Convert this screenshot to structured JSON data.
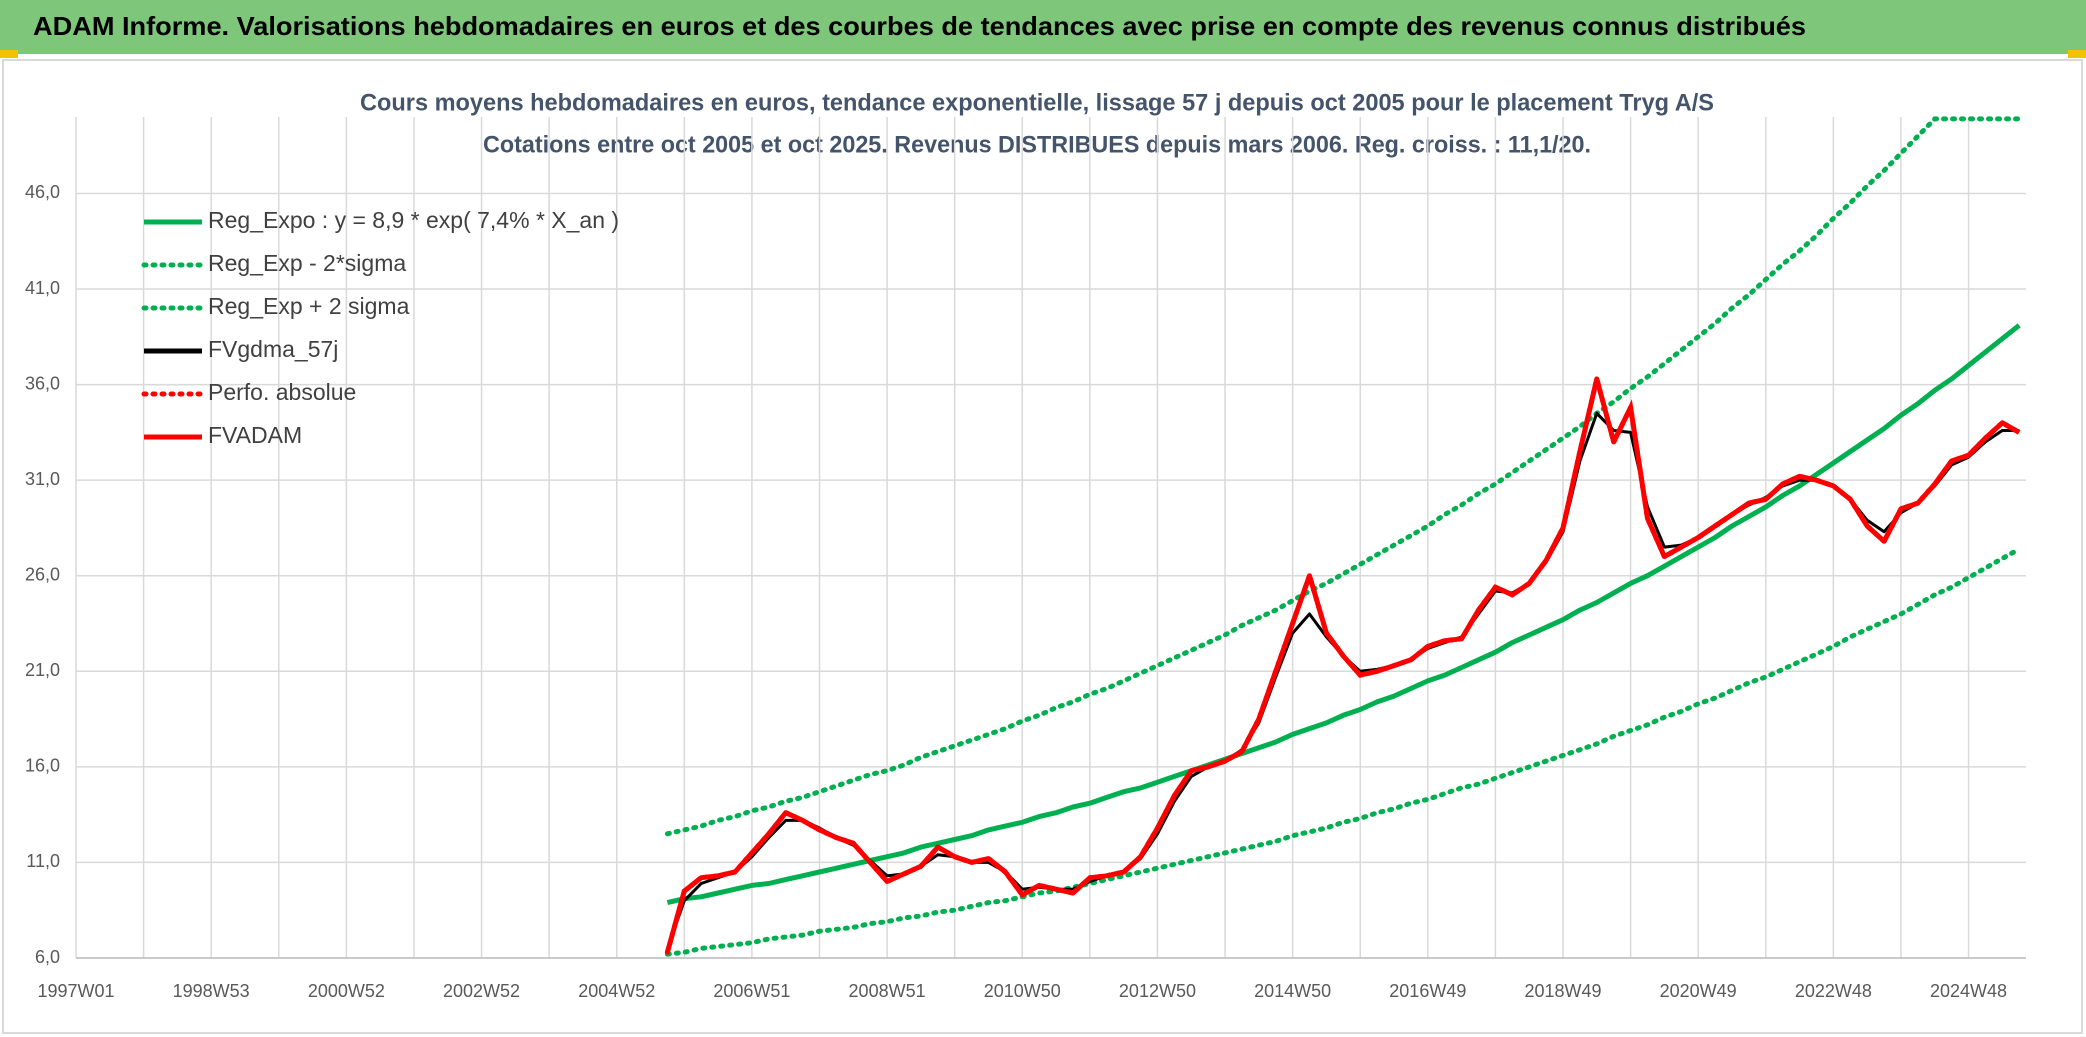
{
  "header": {
    "title": "ADAM Informe. Valorisations hebdomadaires en euros et des courbes de tendances avec prise en compte des revenus connus distribués"
  },
  "chart_data": {
    "type": "line",
    "title": "Cours moyens hebdomadaires en euros, tendance exponentielle, lissage 57 j depuis oct 2005 pour le placement Tryg A/S",
    "subtitle": "Cotations entre oct 2005 et oct 2025. Revenus DISTRIBUES depuis mars 2006. Reg. croiss. : 11,1/20.",
    "categories": [
      "1997W01",
      null,
      null,
      null,
      null,
      null,
      null,
      null,
      "1998W53",
      null,
      null,
      null,
      null,
      null,
      null,
      null,
      "2000W52",
      null,
      null,
      null,
      null,
      null,
      null,
      null,
      "2002W52",
      null,
      null,
      null,
      null,
      null,
      null,
      null,
      "2004W52",
      null,
      null,
      null,
      null,
      null,
      null,
      null,
      "2006W51",
      null,
      null,
      null,
      null,
      null,
      null,
      null,
      "2008W51",
      null,
      null,
      null,
      null,
      null,
      null,
      null,
      "2010W50",
      null,
      null,
      null,
      null,
      null,
      null,
      null,
      "2012W50",
      null,
      null,
      null,
      null,
      null,
      null,
      null,
      "2014W50",
      null,
      null,
      null,
      null,
      null,
      null,
      null,
      "2016W49",
      null,
      null,
      null,
      null,
      null,
      null,
      null,
      "2018W49",
      null,
      null,
      null,
      null,
      null,
      null,
      null,
      "2020W49",
      null,
      null,
      null,
      null,
      null,
      null,
      null,
      "2022W48",
      null,
      null,
      null,
      null,
      null,
      null,
      null,
      "2024W48",
      null,
      null,
      null
    ],
    "ylim": [
      6,
      50
    ],
    "yticks": [
      {
        "value": 6,
        "label": "6,0"
      },
      {
        "value": 11,
        "label": "11,0"
      },
      {
        "value": 16,
        "label": "16,0"
      },
      {
        "value": 21,
        "label": "21,0"
      },
      {
        "value": 26,
        "label": "26,0"
      },
      {
        "value": 31,
        "label": "31,0"
      },
      {
        "value": 36,
        "label": "36,0"
      },
      {
        "value": 41,
        "label": "41,0"
      },
      {
        "value": 46,
        "label": "46,0"
      }
    ],
    "grid": true,
    "legend": "upper left",
    "series": [
      {
        "name": "Reg_Expo : y = 8,9 * exp( 7,4% *  X_an )",
        "color": "#00b050",
        "style": "solid",
        "values": [
          null,
          null,
          null,
          null,
          null,
          null,
          null,
          null,
          null,
          null,
          null,
          null,
          null,
          null,
          null,
          null,
          null,
          null,
          null,
          null,
          null,
          null,
          null,
          null,
          null,
          null,
          null,
          null,
          null,
          null,
          null,
          null,
          null,
          null,
          null,
          8.9,
          9.1,
          9.2,
          9.4,
          9.6,
          9.8,
          9.9,
          10.1,
          10.3,
          10.5,
          10.7,
          10.9,
          11.1,
          11.3,
          11.5,
          11.8,
          12.0,
          12.2,
          12.4,
          12.7,
          12.9,
          13.1,
          13.4,
          13.6,
          13.9,
          14.1,
          14.4,
          14.7,
          14.9,
          15.2,
          15.5,
          15.8,
          16.1,
          16.4,
          16.7,
          17.0,
          17.3,
          17.7,
          18.0,
          18.3,
          18.7,
          19.0,
          19.4,
          19.7,
          20.1,
          20.5,
          20.8,
          21.2,
          21.6,
          22.0,
          22.5,
          22.9,
          23.3,
          23.7,
          24.2,
          24.6,
          25.1,
          25.6,
          26.0,
          26.5,
          27.0,
          27.5,
          28.0,
          28.6,
          29.1,
          29.6,
          30.2,
          30.7,
          31.3,
          31.9,
          32.5,
          33.1,
          33.7,
          34.4,
          35.0,
          35.7,
          36.3,
          37.0,
          37.7,
          38.4,
          39.1
        ]
      },
      {
        "name": "Reg_Exp - 2*sigma",
        "color": "#00b050",
        "style": "dotted",
        "values": [
          null,
          null,
          null,
          null,
          null,
          null,
          null,
          null,
          null,
          null,
          null,
          null,
          null,
          null,
          null,
          null,
          null,
          null,
          null,
          null,
          null,
          null,
          null,
          null,
          null,
          null,
          null,
          null,
          null,
          null,
          null,
          null,
          null,
          null,
          null,
          6.2,
          6.3,
          6.5,
          6.6,
          6.7,
          6.8,
          7.0,
          7.1,
          7.2,
          7.4,
          7.5,
          7.6,
          7.8,
          7.9,
          8.1,
          8.2,
          8.4,
          8.5,
          8.7,
          8.9,
          9.0,
          9.2,
          9.4,
          9.5,
          9.7,
          9.9,
          10.1,
          10.3,
          10.5,
          10.7,
          10.9,
          11.1,
          11.3,
          11.5,
          11.7,
          11.9,
          12.1,
          12.4,
          12.6,
          12.8,
          13.1,
          13.3,
          13.6,
          13.8,
          14.1,
          14.3,
          14.6,
          14.9,
          15.1,
          15.4,
          15.7,
          16.0,
          16.3,
          16.6,
          16.9,
          17.2,
          17.6,
          17.9,
          18.2,
          18.6,
          18.9,
          19.3,
          19.6,
          20.0,
          20.4,
          20.7,
          21.1,
          21.5,
          21.9,
          22.3,
          22.8,
          23.2,
          23.6,
          24.0,
          24.5,
          25.0,
          25.4,
          25.9,
          26.4,
          26.9,
          27.4
        ]
      },
      {
        "name": "Reg_Exp + 2 sigma",
        "color": "#00b050",
        "style": "dotted",
        "values": [
          null,
          null,
          null,
          null,
          null,
          null,
          null,
          null,
          null,
          null,
          null,
          null,
          null,
          null,
          null,
          null,
          null,
          null,
          null,
          null,
          null,
          null,
          null,
          null,
          null,
          null,
          null,
          null,
          null,
          null,
          null,
          null,
          null,
          null,
          null,
          12.5,
          12.7,
          12.9,
          13.2,
          13.4,
          13.7,
          13.9,
          14.2,
          14.4,
          14.7,
          15.0,
          15.3,
          15.6,
          15.8,
          16.1,
          16.5,
          16.8,
          17.1,
          17.4,
          17.7,
          18.0,
          18.4,
          18.7,
          19.1,
          19.4,
          19.8,
          20.1,
          20.5,
          20.9,
          21.3,
          21.7,
          22.1,
          22.5,
          22.9,
          23.4,
          23.8,
          24.2,
          24.7,
          25.2,
          25.6,
          26.1,
          26.6,
          27.1,
          27.6,
          28.1,
          28.6,
          29.2,
          29.7,
          30.3,
          30.8,
          31.4,
          32.0,
          32.6,
          33.2,
          33.8,
          34.5,
          35.1,
          35.8,
          36.4,
          37.1,
          37.8,
          38.5,
          39.2,
          40.0,
          40.7,
          41.5,
          42.3,
          43.0,
          43.8,
          44.7,
          45.5,
          46.4,
          47.2,
          48.1,
          49.0,
          49.9,
          49.9,
          49.9,
          49.9,
          49.9,
          49.9
        ]
      },
      {
        "name": "FVgdma_57j",
        "color": "#000000",
        "style": "solid",
        "values": [
          null,
          null,
          null,
          null,
          null,
          null,
          null,
          null,
          null,
          null,
          null,
          null,
          null,
          null,
          null,
          null,
          null,
          null,
          null,
          null,
          null,
          null,
          null,
          null,
          null,
          null,
          null,
          null,
          null,
          null,
          null,
          null,
          null,
          null,
          null,
          6.5,
          9.0,
          9.9,
          10.2,
          10.5,
          11.3,
          12.3,
          13.2,
          13.2,
          12.8,
          12.3,
          11.9,
          11.1,
          10.3,
          10.4,
          10.8,
          11.4,
          11.3,
          11.0,
          11.0,
          10.5,
          9.6,
          9.7,
          9.6,
          9.6,
          10.0,
          10.3,
          10.5,
          11.2,
          12.5,
          14.2,
          15.5,
          16.0,
          16.3,
          16.9,
          18.3,
          20.7,
          23.0,
          24.0,
          22.8,
          21.8,
          21.0,
          21.1,
          21.3,
          21.6,
          22.2,
          22.5,
          22.8,
          24.0,
          25.2,
          25.1,
          25.6,
          26.7,
          28.3,
          32.0,
          34.5,
          33.6,
          33.5,
          29.6,
          27.5,
          27.6,
          28.0,
          28.6,
          29.2,
          29.7,
          30.1,
          30.7,
          31.0,
          31.0,
          30.7,
          30.0,
          28.9,
          28.3,
          29.3,
          29.8,
          30.7,
          31.8,
          32.2,
          33.0,
          33.6,
          33.6
        ]
      },
      {
        "name": "Perfo. absolue",
        "color": "#ff0000",
        "style": "dotted",
        "values": [
          null,
          null,
          null,
          null,
          null,
          null,
          null,
          null,
          null,
          null,
          null,
          null,
          null,
          null,
          null,
          null,
          null,
          null,
          null,
          null,
          null,
          null,
          null,
          null,
          null,
          null,
          null,
          null,
          null,
          null,
          null,
          null,
          null,
          null,
          null,
          6.3,
          9.5,
          10.2,
          10.3,
          10.5,
          11.5,
          12.5,
          13.6,
          13.2,
          12.7,
          12.3,
          12.0,
          11.0,
          10.0,
          10.4,
          10.8,
          11.8,
          11.3,
          11.0,
          11.2,
          10.5,
          9.3,
          9.8,
          9.6,
          9.4,
          10.2,
          10.3,
          10.5,
          11.3,
          12.8,
          14.5,
          15.8,
          16.0,
          16.3,
          16.8,
          18.5,
          21.0,
          23.5,
          26.0,
          23.0,
          21.8,
          20.8,
          21.0,
          21.3,
          21.6,
          22.3,
          22.6,
          22.7,
          24.2,
          25.4,
          25.0,
          25.6,
          26.8,
          28.5,
          32.5,
          36.3,
          33.0,
          34.8,
          29.0,
          27.0,
          27.5,
          28.0,
          28.6,
          29.2,
          29.8,
          30.0,
          30.8,
          31.2,
          31.0,
          30.7,
          30.0,
          28.6,
          27.8,
          29.5,
          29.8,
          30.8,
          32.0,
          32.3,
          33.2,
          34.0,
          33.5
        ]
      },
      {
        "name": "FVADAM",
        "color": "#ff0000",
        "style": "solid",
        "values": [
          null,
          null,
          null,
          null,
          null,
          null,
          null,
          null,
          null,
          null,
          null,
          null,
          null,
          null,
          null,
          null,
          null,
          null,
          null,
          null,
          null,
          null,
          null,
          null,
          null,
          null,
          null,
          null,
          null,
          null,
          null,
          null,
          null,
          null,
          null,
          6.3,
          9.5,
          10.2,
          10.3,
          10.5,
          11.5,
          12.5,
          13.6,
          13.2,
          12.7,
          12.3,
          12.0,
          11.0,
          10.0,
          10.4,
          10.8,
          11.8,
          11.3,
          11.0,
          11.2,
          10.5,
          9.3,
          9.8,
          9.6,
          9.4,
          10.2,
          10.3,
          10.5,
          11.3,
          12.8,
          14.5,
          15.8,
          16.0,
          16.3,
          16.8,
          18.5,
          21.0,
          23.5,
          26.0,
          23.0,
          21.8,
          20.8,
          21.0,
          21.3,
          21.6,
          22.3,
          22.6,
          22.7,
          24.2,
          25.4,
          25.0,
          25.6,
          26.8,
          28.5,
          32.5,
          36.3,
          33.0,
          34.8,
          29.0,
          27.0,
          27.5,
          28.0,
          28.6,
          29.2,
          29.8,
          30.0,
          30.8,
          31.2,
          31.0,
          30.7,
          30.0,
          28.6,
          27.8,
          29.5,
          29.8,
          30.8,
          32.0,
          32.3,
          33.2,
          34.0,
          33.5
        ]
      }
    ]
  }
}
